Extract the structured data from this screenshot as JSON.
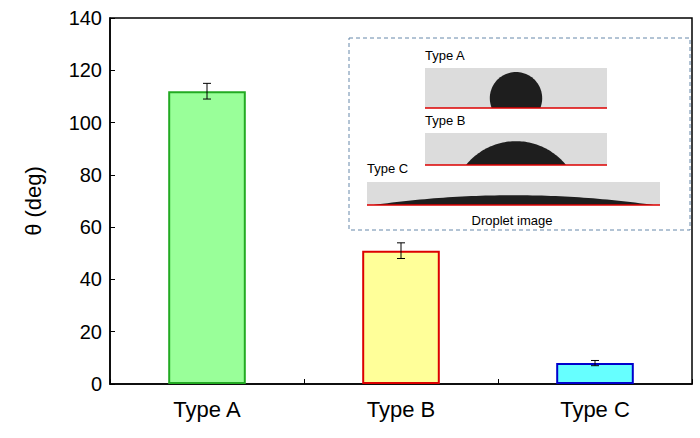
{
  "chart_data": {
    "type": "bar",
    "categories": [
      "Type A",
      "Type B",
      "Type C"
    ],
    "values": [
      112,
      51,
      8
    ],
    "errors": [
      3,
      3,
      1
    ],
    "colors": [
      "#99ff99",
      "#ffff99",
      "#66ffff"
    ],
    "y_label": "θ (deg)",
    "ylim": [
      0,
      140
    ],
    "yticks": [
      0,
      20,
      40,
      60,
      80,
      100,
      120,
      140
    ],
    "grid": false,
    "annotations": {
      "title": "Droplet image",
      "labels": [
        "Type A",
        "Type B",
        "Type C"
      ]
    }
  }
}
